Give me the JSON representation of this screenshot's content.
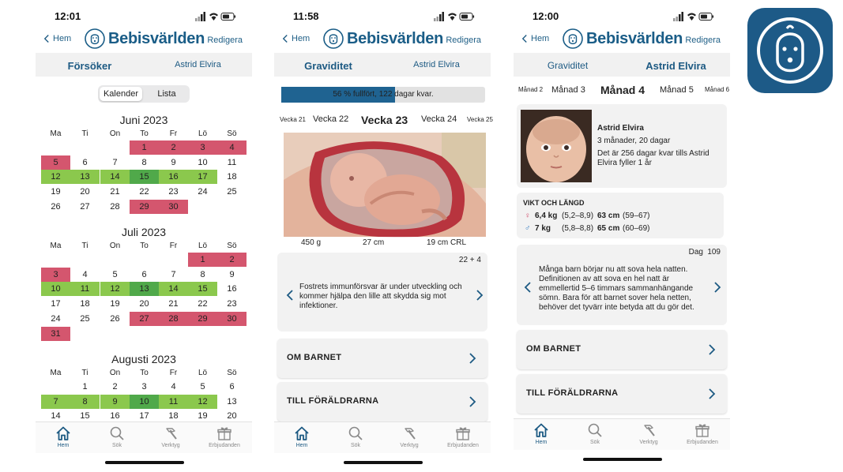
{
  "header": {
    "back_label": "Hem",
    "brand": "Bebisvärlden",
    "edit_label": "Redigera"
  },
  "tabbar": {
    "items": [
      "Hem",
      "Sök",
      "Verktyg",
      "Erbjudanden"
    ]
  },
  "screen1": {
    "time": "12:01",
    "tabs": [
      "Försöker",
      "Astrid Elvira"
    ],
    "segment": [
      "Kalender",
      "Lista"
    ],
    "weekdays": [
      "Ma",
      "Ti",
      "On",
      "To",
      "Fr",
      "Lö",
      "Sö"
    ],
    "months": [
      {
        "title": "Juni  2023",
        "offset": 3,
        "days": [
          "1",
          "2",
          "3",
          "4",
          "5",
          "6",
          "7",
          "8",
          "9",
          "10",
          "11",
          "12",
          "13",
          "14",
          "15",
          "16",
          "17",
          "18",
          "19",
          "20",
          "21",
          "22",
          "23",
          "24",
          "25",
          "26",
          "27",
          "28",
          "29",
          "30"
        ],
        "red": [
          1,
          2,
          3,
          4,
          5,
          29,
          30
        ],
        "green": [
          12,
          13,
          14,
          16,
          17
        ],
        "dark": [
          15
        ]
      },
      {
        "title": "Juli  2023",
        "offset": 5,
        "days": [
          "1",
          "2",
          "3",
          "4",
          "5",
          "6",
          "7",
          "8",
          "9",
          "10",
          "11",
          "12",
          "13",
          "14",
          "15",
          "16",
          "17",
          "18",
          "19",
          "20",
          "21",
          "22",
          "23",
          "24",
          "25",
          "26",
          "27",
          "28",
          "29",
          "30",
          "31"
        ],
        "red": [
          1,
          2,
          3,
          27,
          28,
          29,
          30,
          31
        ],
        "green": [
          10,
          11,
          12,
          14,
          15
        ],
        "dark": [
          13
        ]
      },
      {
        "title": "Augusti  2023",
        "offset": 1,
        "days": [
          "1",
          "2",
          "3",
          "4",
          "5",
          "6",
          "7",
          "8",
          "9",
          "10",
          "11",
          "12",
          "13",
          "14",
          "15",
          "16",
          "17",
          "18",
          "19",
          "20"
        ],
        "red": [],
        "green": [
          7,
          8,
          9,
          11,
          12
        ],
        "dark": [
          10
        ]
      }
    ]
  },
  "screen2": {
    "time": "11:58",
    "tabs": [
      "Graviditet",
      "Astrid Elvira"
    ],
    "progress": {
      "fraction": 0.56,
      "text": "56 % fullfört, 122 dagar kvar."
    },
    "weeks": [
      "Vecka 21",
      "Vecka 22",
      "Vecka 23",
      "Vecka 24",
      "Vecka 25"
    ],
    "measurements": [
      "450 g",
      "27 cm",
      "19 cm CRL"
    ],
    "day_counter": "22 + 4",
    "info_text": "Fostrets immunförsvar är under utveckling och kommer hjälpa den lille att skydda sig mot infektioner.",
    "rows": [
      "OM BARNET",
      "TILL FÖRÄLDRARNA"
    ]
  },
  "screen3": {
    "time": "12:00",
    "tabs": [
      "Graviditet",
      "Astrid Elvira"
    ],
    "months": [
      "Månad 2",
      "Månad 3",
      "Månad 4",
      "Månad 5",
      "Månad 6"
    ],
    "child": {
      "name": "Astrid Elvira",
      "age": "3 månader, 20 dagar",
      "countdown": "Det är 256 dagar kvar tills Astrid Elvira fyller 1 år"
    },
    "growth": {
      "title": "VIKT OCH LÄNGD",
      "girl": {
        "weight": "6,4 kg",
        "weight_range": "(5,2–8,9)",
        "length": "63 cm",
        "length_range": "(59–67)"
      },
      "boy": {
        "weight": "7 kg",
        "weight_range": "(5,8–8,8)",
        "length": "65 cm",
        "length_range": "(60–69)"
      }
    },
    "day_label": "Dag",
    "day_number": "109",
    "info_text": "Många barn börjar nu att sova hela natten. Definitionen av att sova en hel natt är emmellertid 5–6 timmars sammanhängande sömn. Bara för att barnet sover hela netten, behöver det tyvärr inte betyda att du gör det.",
    "rows": [
      "OM BARNET",
      "TILL FÖRÄLDRARNA"
    ]
  },
  "colors": {
    "brand": "#1a5d87",
    "red_day": "#d4566e",
    "green_day": "#8bc84d",
    "dark_green_day": "#50a94a"
  }
}
